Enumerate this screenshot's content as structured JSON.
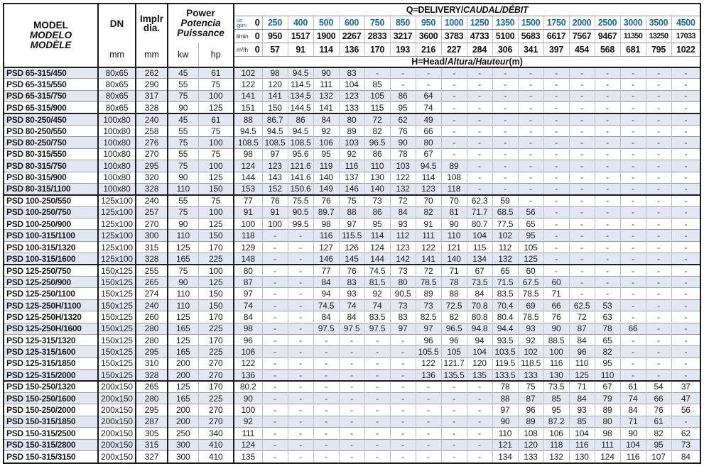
{
  "header": {
    "model_lines": [
      "MODEL",
      "MODELO",
      "MODÈLE"
    ],
    "dn": {
      "label": "DN",
      "unit": "mm"
    },
    "impeller": {
      "label_lines": [
        "Implr",
        "dia."
      ],
      "unit": "mm"
    },
    "power": {
      "lines": [
        "Power",
        "Potencia",
        "Puissance"
      ],
      "units": [
        "kw",
        "hp"
      ]
    }
  },
  "delivery": {
    "title": {
      "plain": "Q=DELIVERY/",
      "italic": "CAUDAL/DÉBIT"
    },
    "row_labels": {
      "gpm_top": "us",
      "gpm_bottom": "gpm",
      "lmin": "l/min",
      "m3h": "m³/h"
    },
    "gpm": [
      "0",
      "250",
      "400",
      "500",
      "600",
      "750",
      "850",
      "950",
      "1000",
      "1250",
      "1350",
      "1500",
      "1750",
      "2000",
      "2500",
      "3000",
      "3500",
      "4500"
    ],
    "lmin": [
      "0",
      "950",
      "1517",
      "1900",
      "2267",
      "2833",
      "3217",
      "3600",
      "3783",
      "4733",
      "5100",
      "5683",
      "6617",
      "7567",
      "9467",
      "11350",
      "13250",
      "17033"
    ],
    "m3h": [
      "0",
      "57",
      "91",
      "114",
      "136",
      "170",
      "193",
      "216",
      "227",
      "284",
      "306",
      "341",
      "397",
      "454",
      "568",
      "681",
      "795",
      "1022"
    ]
  },
  "head_note": {
    "plain": "H=Head/",
    "italic": "Altura/Hauteur",
    "unit": "(m)"
  },
  "colors": {
    "accent_blue": "#1268b3",
    "row_tint": "#e2e7f1",
    "grid_dark": "#1c1c1c"
  },
  "rows": [
    {
      "model": "PSD 65-315/450",
      "dn": "80x65",
      "dia": "262",
      "kw": "45",
      "hp": "61",
      "values": [
        "102",
        "98",
        "94.5",
        "90",
        "83",
        "-",
        "-",
        "-",
        "-",
        "-",
        "-",
        "-",
        "-",
        "-",
        "-",
        "-",
        "-",
        "-"
      ]
    },
    {
      "model": "PSD 65-315/550",
      "dn": "80x65",
      "dia": "290",
      "kw": "55",
      "hp": "75",
      "values": [
        "122",
        "120",
        "114.5",
        "111",
        "104",
        "85",
        "-",
        "-",
        "-",
        "-",
        "-",
        "-",
        "-",
        "-",
        "-",
        "-",
        "-",
        "-"
      ]
    },
    {
      "model": "PSD 65-315/750",
      "dn": "80x65",
      "dia": "317",
      "kw": "75",
      "hp": "100",
      "values": [
        "141",
        "141",
        "134.5",
        "132",
        "123",
        "105",
        "86",
        "64",
        "-",
        "-",
        "-",
        "-",
        "-",
        "-",
        "-",
        "-",
        "-",
        "-"
      ]
    },
    {
      "model": "PSD 65-315/900",
      "dn": "80x65",
      "dia": "328",
      "kw": "90",
      "hp": "125",
      "values": [
        "151",
        "150",
        "144.5",
        "141",
        "133",
        "115",
        "95",
        "74",
        "-",
        "-",
        "-",
        "-",
        "-",
        "-",
        "-",
        "-",
        "-",
        "-"
      ]
    },
    {
      "model": "PSD 80-250/450",
      "dn": "100x80",
      "dia": "240",
      "kw": "45",
      "hp": "61",
      "values": [
        "88",
        "86.7",
        "86",
        "84",
        "80",
        "72",
        "62",
        "49",
        "-",
        "-",
        "-",
        "-",
        "-",
        "-",
        "-",
        "-",
        "-",
        "-"
      ]
    },
    {
      "model": "PSD 80-250/550",
      "dn": "100x80",
      "dia": "258",
      "kw": "55",
      "hp": "75",
      "values": [
        "94.5",
        "94.5",
        "94.5",
        "92",
        "89",
        "82",
        "76",
        "66",
        "-",
        "-",
        "-",
        "-",
        "-",
        "-",
        "-",
        "-",
        "-",
        "-"
      ]
    },
    {
      "model": "PSD 80-250/750",
      "dn": "100x80",
      "dia": "276",
      "kw": "75",
      "hp": "100",
      "values": [
        "108.5",
        "108.5",
        "108.5",
        "106",
        "103",
        "96.5",
        "90",
        "80",
        "-",
        "-",
        "-",
        "-",
        "-",
        "-",
        "-",
        "-",
        "-",
        "-"
      ]
    },
    {
      "model": "PSD 80-315/550",
      "dn": "100x80",
      "dia": "270",
      "kw": "55",
      "hp": "75",
      "values": [
        "98",
        "97",
        "95.6",
        "95",
        "92",
        "86",
        "78",
        "67",
        "-",
        "-",
        "-",
        "-",
        "-",
        "-",
        "-",
        "-",
        "-",
        "-"
      ]
    },
    {
      "model": "PSD 80-315/750",
      "dn": "100x80",
      "dia": "295",
      "kw": "75",
      "hp": "100",
      "values": [
        "124",
        "123",
        "121.6",
        "119",
        "116",
        "110",
        "103",
        "94.5",
        "89",
        "-",
        "-",
        "-",
        "-",
        "-",
        "-",
        "-",
        "-",
        "-"
      ]
    },
    {
      "model": "PSD 80-315/900",
      "dn": "100x80",
      "dia": "320",
      "kw": "90",
      "hp": "125",
      "values": [
        "144",
        "143",
        "141.6",
        "140",
        "137",
        "130",
        "122",
        "114",
        "108",
        "-",
        "-",
        "-",
        "-",
        "-",
        "-",
        "-",
        "-",
        "-"
      ]
    },
    {
      "model": "PSD 80-315/1100",
      "dn": "100x80",
      "dia": "328",
      "kw": "110",
      "hp": "150",
      "values": [
        "153",
        "152",
        "150.6",
        "149",
        "146",
        "140",
        "132",
        "123",
        "118",
        "-",
        "-",
        "-",
        "-",
        "-",
        "-",
        "-",
        "-",
        "-"
      ]
    },
    {
      "model": "PSD 100-250/550",
      "dn": "125x100",
      "dia": "240",
      "kw": "55",
      "hp": "75",
      "values": [
        "77",
        "76",
        "75.5",
        "76",
        "75",
        "73",
        "72",
        "70",
        "70",
        "62.3",
        "59",
        "-",
        "-",
        "-",
        "-",
        "-",
        "-",
        "-"
      ]
    },
    {
      "model": "PSD 100-250/750",
      "dn": "125x100",
      "dia": "257",
      "kw": "75",
      "hp": "100",
      "values": [
        "91",
        "91",
        "90.5",
        "89.7",
        "88",
        "86",
        "84",
        "82",
        "81",
        "71.7",
        "68.5",
        "56",
        "-",
        "-",
        "-",
        "-",
        "-",
        "-"
      ]
    },
    {
      "model": "PSD 100-250/900",
      "dn": "125x100",
      "dia": "270",
      "kw": "90",
      "hp": "125",
      "values": [
        "100",
        "100",
        "99.5",
        "98",
        "97",
        "95",
        "93",
        "91",
        "90",
        "80.7",
        "77.5",
        "65",
        "-",
        "-",
        "-",
        "-",
        "-",
        "-"
      ]
    },
    {
      "model": "PSD 100-315/1100",
      "dn": "125x100",
      "dia": "300",
      "kw": "110",
      "hp": "150",
      "values": [
        "118",
        "-",
        "-",
        "116",
        "115.5",
        "114",
        "112",
        "111",
        "110",
        "104",
        "102",
        "95",
        "-",
        "-",
        "-",
        "-",
        "-",
        "-"
      ]
    },
    {
      "model": "PSD 100-315/1320",
      "dn": "125x100",
      "dia": "315",
      "kw": "125",
      "hp": "170",
      "values": [
        "129",
        "-",
        "-",
        "127",
        "126",
        "124",
        "123",
        "122",
        "121",
        "115",
        "112",
        "105",
        "-",
        "-",
        "-",
        "-",
        "-",
        "-"
      ]
    },
    {
      "model": "PSD 100-315/1600",
      "dn": "125x100",
      "dia": "328",
      "kw": "165",
      "hp": "225",
      "values": [
        "148",
        "-",
        "-",
        "146",
        "145",
        "144",
        "142",
        "141",
        "140",
        "134",
        "132",
        "125",
        "-",
        "-",
        "-",
        "-",
        "-",
        "-"
      ]
    },
    {
      "model": "PSD 125-250/750",
      "dn": "150x125",
      "dia": "255",
      "kw": "75",
      "hp": "100",
      "values": [
        "80",
        "-",
        "-",
        "77",
        "76",
        "74.5",
        "73",
        "72",
        "71",
        "67",
        "65",
        "60",
        "-",
        "-",
        "-",
        "-",
        "-",
        "-"
      ]
    },
    {
      "model": "PSD 125-250/900",
      "dn": "150x125",
      "dia": "265",
      "kw": "90",
      "hp": "125",
      "values": [
        "87",
        "-",
        "-",
        "84",
        "83",
        "81.5",
        "80",
        "78.5",
        "78",
        "73.5",
        "71.5",
        "67.5",
        "60",
        "-",
        "-",
        "-",
        "-",
        "-"
      ]
    },
    {
      "model": "PSD 125-250/1100",
      "dn": "150x125",
      "dia": "274",
      "kw": "110",
      "hp": "150",
      "values": [
        "97",
        "-",
        "-",
        "94",
        "93",
        "92",
        "90.5",
        "89",
        "88",
        "84",
        "83.5",
        "78.5",
        "71",
        "-",
        "-",
        "-",
        "-",
        "-"
      ]
    },
    {
      "model": "PSD 125-250H/1100",
      "dn": "150x125",
      "dia": "240",
      "kw": "110",
      "hp": "150",
      "values": [
        "74",
        "-",
        "-",
        "74.5",
        "74",
        "74",
        "73",
        "73",
        "72.5",
        "70.8",
        "70.4",
        "69",
        "66",
        "62.5",
        "53",
        "-",
        "-",
        "-"
      ]
    },
    {
      "model": "PSD 125-250H/1320",
      "dn": "150x125",
      "dia": "260",
      "kw": "125",
      "hp": "170",
      "values": [
        "84",
        "-",
        "-",
        "84",
        "84",
        "83.5",
        "83",
        "82.5",
        "82",
        "80.8",
        "80.4",
        "78.5",
        "76",
        "72",
        "63",
        "-",
        "-",
        "-"
      ]
    },
    {
      "model": "PSD 125-250H/1600",
      "dn": "150x125",
      "dia": "280",
      "kw": "165",
      "hp": "225",
      "values": [
        "98",
        "-",
        "-",
        "97.5",
        "97.5",
        "97.5",
        "97",
        "97",
        "96.5",
        "94.8",
        "94.4",
        "93",
        "90",
        "87",
        "78",
        "66",
        "-",
        "-"
      ]
    },
    {
      "model": "PSD 125-315/1320",
      "dn": "150x125",
      "dia": "280",
      "kw": "125",
      "hp": "170",
      "values": [
        "96",
        "-",
        "-",
        "-",
        "-",
        "-",
        "-",
        "96",
        "96",
        "94",
        "93.5",
        "92",
        "88.5",
        "84",
        "65",
        "-",
        "-",
        "-"
      ]
    },
    {
      "model": "PSD 125-315/1600",
      "dn": "150x125",
      "dia": "295",
      "kw": "165",
      "hp": "225",
      "values": [
        "106",
        "-",
        "-",
        "-",
        "-",
        "-",
        "-",
        "105.5",
        "105",
        "104",
        "103.5",
        "102",
        "100",
        "96",
        "82",
        "-",
        "-",
        "-"
      ]
    },
    {
      "model": "PSD 125-315/1850",
      "dn": "150x125",
      "dia": "310",
      "kw": "200",
      "hp": "270",
      "values": [
        "122",
        "-",
        "-",
        "-",
        "-",
        "-",
        "-",
        "122",
        "121.7",
        "120",
        "119.5",
        "118.5",
        "116",
        "110",
        "95",
        "-",
        "-",
        "-"
      ]
    },
    {
      "model": "PSD 125-315/2000",
      "dn": "150x125",
      "dia": "328",
      "kw": "200",
      "hp": "270",
      "values": [
        "136",
        "-",
        "-",
        "-",
        "-",
        "-",
        "-",
        "136",
        "135.5",
        "135",
        "133.5",
        "133",
        "130",
        "125",
        "110",
        "-",
        "-",
        "-"
      ]
    },
    {
      "model": "PSD 150-250/1320",
      "dn": "200x150",
      "dia": "265",
      "kw": "125",
      "hp": "170",
      "values": [
        "80.2",
        "-",
        "-",
        "-",
        "-",
        "-",
        "-",
        "-",
        "-",
        "-",
        "78",
        "75",
        "73.5",
        "71",
        "67",
        "61",
        "54",
        "37"
      ]
    },
    {
      "model": "PSD 150-250/1600",
      "dn": "200x150",
      "dia": "280",
      "kw": "165",
      "hp": "225",
      "values": [
        "90",
        "-",
        "-",
        "-",
        "-",
        "-",
        "-",
        "-",
        "-",
        "-",
        "88",
        "87",
        "85",
        "84",
        "79",
        "74",
        "66",
        "47"
      ]
    },
    {
      "model": "PSD 150-250/2000",
      "dn": "200x150",
      "dia": "295",
      "kw": "200",
      "hp": "270",
      "values": [
        "100",
        "-",
        "-",
        "-",
        "-",
        "-",
        "-",
        "-",
        "-",
        "-",
        "97",
        "96",
        "95",
        "93",
        "89",
        "84",
        "76",
        "56"
      ]
    },
    {
      "model": "PSD 150-315/1850",
      "dn": "200x150",
      "dia": "287",
      "kw": "200",
      "hp": "270",
      "values": [
        "92",
        "-",
        "-",
        "-",
        "-",
        "-",
        "-",
        "-",
        "-",
        "-",
        "90",
        "89",
        "87.2",
        "85",
        "80",
        "71",
        "61",
        "-"
      ]
    },
    {
      "model": "PSD 150-315/2500",
      "dn": "200x150",
      "dia": "305",
      "kw": "250",
      "hp": "340",
      "values": [
        "111",
        "-",
        "-",
        "-",
        "-",
        "-",
        "-",
        "-",
        "-",
        "-",
        "110",
        "108",
        "106",
        "104",
        "98",
        "90",
        "82",
        "62"
      ]
    },
    {
      "model": "PSD 150-315/2800",
      "dn": "200x150",
      "dia": "315",
      "kw": "300",
      "hp": "410",
      "values": [
        "124",
        "-",
        "-",
        "-",
        "-",
        "-",
        "-",
        "-",
        "-",
        "-",
        "121",
        "120",
        "118",
        "116",
        "111",
        "104",
        "95",
        "73"
      ]
    },
    {
      "model": "PSD 150-315/3150",
      "dn": "200x150",
      "dia": "327",
      "kw": "300",
      "hp": "410",
      "values": [
        "135",
        "-",
        "-",
        "-",
        "-",
        "-",
        "-",
        "-",
        "-",
        "-",
        "134",
        "133",
        "132",
        "130",
        "124",
        "116",
        "107",
        "84"
      ]
    }
  ]
}
